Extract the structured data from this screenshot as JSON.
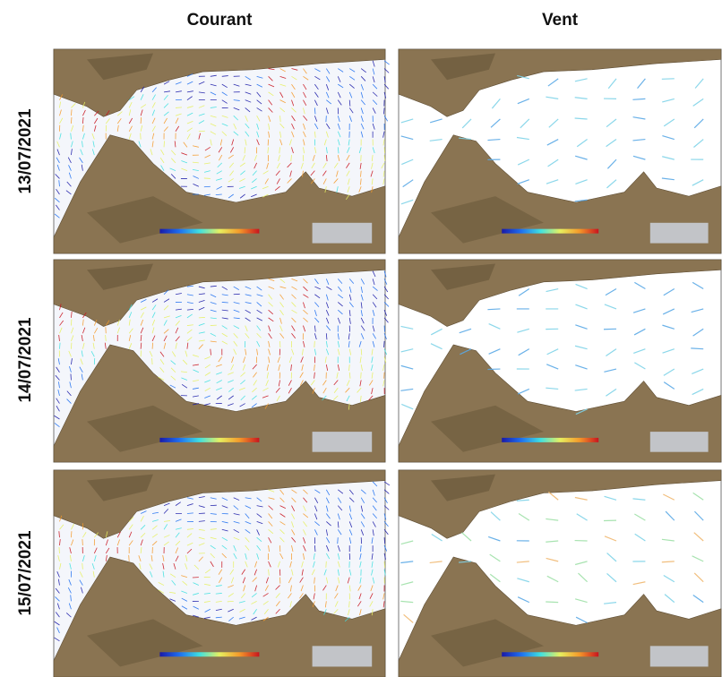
{
  "columns": [
    "Courant",
    "Vent"
  ],
  "rows": [
    "13/07/2021",
    "14/07/2021",
    "15/07/2021"
  ]
}
